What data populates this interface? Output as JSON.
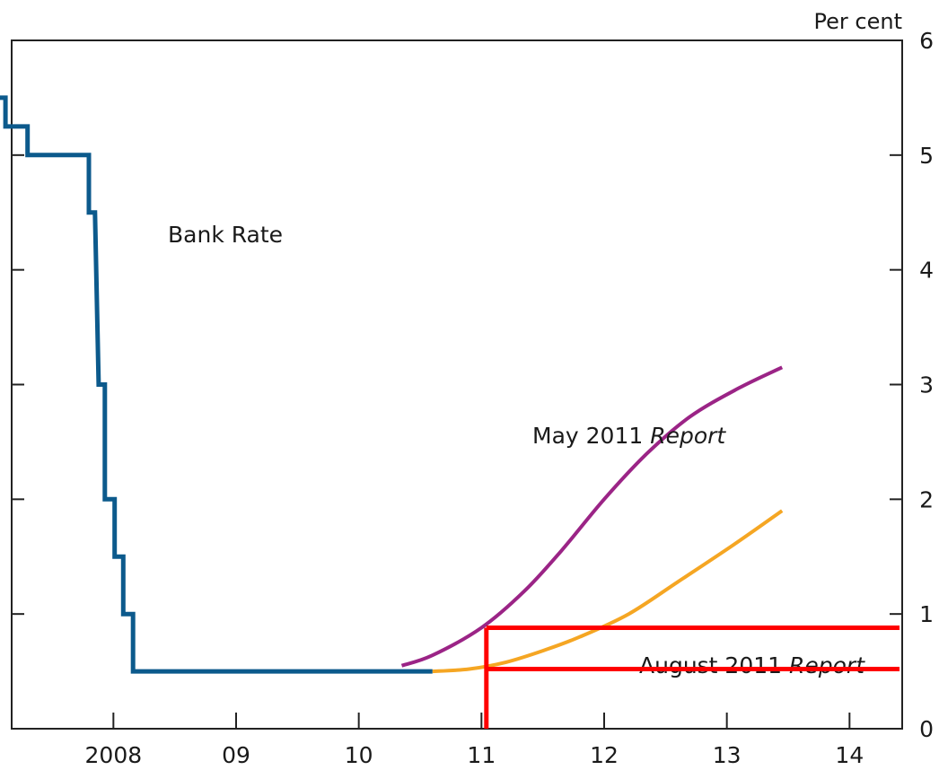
{
  "chart_data": {
    "type": "line",
    "y_unit_label": "Per cent",
    "ylim": [
      0,
      6
    ],
    "y_ticks": [
      "0",
      "1",
      "2",
      "3",
      "4",
      "5",
      "6"
    ],
    "x_tick_labels": [
      "2008",
      "09",
      "10",
      "11",
      "12",
      "13",
      "14"
    ],
    "x_range": [
      2007.5,
      2015.2
    ],
    "grid": false,
    "legend": "inline",
    "colors": {
      "bank_rate": "#0c5a8c",
      "may_2011": "#9b2486",
      "august_2011": "#f5a623",
      "annotation": "#ff0000",
      "axis": "#222222"
    },
    "series": [
      {
        "name": "Bank Rate",
        "label": "Bank Rate",
        "step": true,
        "points": [
          [
            2007.5,
            5.5
          ],
          [
            2007.62,
            5.5
          ],
          [
            2007.62,
            5.25
          ],
          [
            2007.8,
            5.25
          ],
          [
            2007.8,
            5.0
          ],
          [
            2008.3,
            5.0
          ],
          [
            2008.3,
            4.5
          ],
          [
            2008.35,
            4.5
          ],
          [
            2008.38,
            3.0
          ],
          [
            2008.43,
            3.0
          ],
          [
            2008.43,
            2.0
          ],
          [
            2008.51,
            2.0
          ],
          [
            2008.51,
            1.5
          ],
          [
            2008.58,
            1.5
          ],
          [
            2008.58,
            1.0
          ],
          [
            2008.66,
            1.0
          ],
          [
            2008.66,
            0.5
          ],
          [
            2011.1,
            0.5
          ]
        ]
      },
      {
        "name": "May 2011 Report",
        "label_regular": "May 2011 ",
        "label_italic": "Report",
        "points": [
          [
            2010.85,
            0.55
          ],
          [
            2011.1,
            0.64
          ],
          [
            2011.5,
            0.88
          ],
          [
            2011.85,
            1.2
          ],
          [
            2012.15,
            1.55
          ],
          [
            2012.5,
            2.0
          ],
          [
            2012.85,
            2.4
          ],
          [
            2013.2,
            2.72
          ],
          [
            2013.6,
            2.97
          ],
          [
            2013.95,
            3.15
          ]
        ]
      },
      {
        "name": "August 2011 Report",
        "label_regular": "August 2011 ",
        "label_italic": "Report",
        "points": [
          [
            2011.1,
            0.5
          ],
          [
            2011.4,
            0.52
          ],
          [
            2011.7,
            0.58
          ],
          [
            2012.0,
            0.68
          ],
          [
            2012.3,
            0.8
          ],
          [
            2012.7,
            1.0
          ],
          [
            2013.1,
            1.28
          ],
          [
            2013.55,
            1.6
          ],
          [
            2013.95,
            1.9
          ]
        ]
      }
    ],
    "annotations": {
      "vertical_x": 2011.54,
      "horizontal_levels": [
        0.88,
        0.52
      ]
    }
  }
}
